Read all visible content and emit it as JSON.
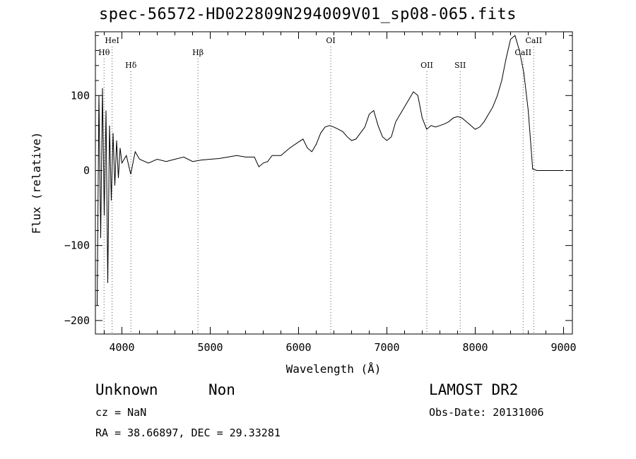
{
  "header": {
    "title": "spec-56572-HD022809N294009V01_sp08-065.fits"
  },
  "info": {
    "class": "Unknown",
    "subclass": "Non",
    "survey": "LAMOST DR2",
    "cz": "cz = NaN",
    "obs_date": "Obs-Date: 20131006",
    "radec": "RA =  38.66897, DEC =  29.33281"
  },
  "chart_data": {
    "type": "line",
    "title": "spec-56572-HD022809N294009V01_sp08-065.fits",
    "xlabel": "Wavelength (Å)",
    "ylabel": "Flux (relative)",
    "xlim": [
      3700,
      9100
    ],
    "ylim": [
      -218,
      185
    ],
    "xticks": [
      4000,
      5000,
      6000,
      7000,
      8000,
      9000
    ],
    "yticks": [
      -200,
      -100,
      0,
      100
    ],
    "grid": false,
    "line_color": "#000000",
    "marker_color": "#555555",
    "lines": [
      {
        "label": "Hθ",
        "wavelength": 3798,
        "row": 2
      },
      {
        "label": "HeI",
        "wavelength": 3889,
        "row": 1
      },
      {
        "label": "Hδ",
        "wavelength": 4102,
        "row": 3
      },
      {
        "label": "Hβ",
        "wavelength": 4861,
        "row": 2
      },
      {
        "label": "OI",
        "wavelength": 6364,
        "row": 1
      },
      {
        "label": "OII",
        "wavelength": 7452,
        "row": 3
      },
      {
        "label": "SII",
        "wavelength": 7830,
        "row": 3
      },
      {
        "label": "CaII",
        "wavelength": 8542,
        "row": 2
      },
      {
        "label": "CaII",
        "wavelength": 8662,
        "row": 1
      }
    ],
    "series": [
      {
        "x": [
          3720,
          3740,
          3760,
          3780,
          3800,
          3820,
          3840,
          3860,
          3880,
          3900,
          3920,
          3940,
          3960,
          3980,
          4000,
          4050,
          4100,
          4150,
          4200,
          4300,
          4400,
          4500,
          4600,
          4700,
          4800,
          4900,
          5000,
          5100,
          5200,
          5300,
          5400,
          5500,
          5550,
          5600,
          5650,
          5700,
          5800,
          5900,
          6000,
          6050,
          6100,
          6150,
          6200,
          6250,
          6300,
          6350,
          6400,
          6450,
          6500,
          6550,
          6600,
          6650,
          6700,
          6750,
          6800,
          6850,
          6900,
          6950,
          7000,
          7050,
          7100,
          7150,
          7200,
          7250,
          7300,
          7350,
          7400,
          7450,
          7500,
          7550,
          7600,
          7650,
          7700,
          7750,
          7800,
          7850,
          7900,
          7950,
          8000,
          8050,
          8100,
          8150,
          8200,
          8250,
          8300,
          8350,
          8400,
          8450,
          8500,
          8550,
          8600,
          8650,
          8700,
          8750,
          8800,
          8850,
          8900,
          8920,
          8940,
          8960,
          8980,
          9000
        ],
        "y": [
          -180,
          100,
          -90,
          110,
          -60,
          80,
          -150,
          60,
          -40,
          50,
          -20,
          40,
          -10,
          30,
          10,
          20,
          -5,
          25,
          15,
          10,
          15,
          12,
          15,
          18,
          12,
          14,
          15,
          16,
          18,
          20,
          18,
          18,
          5,
          10,
          12,
          20,
          20,
          30,
          38,
          42,
          30,
          25,
          35,
          50,
          58,
          60,
          58,
          55,
          52,
          45,
          40,
          42,
          50,
          58,
          75,
          80,
          60,
          45,
          40,
          45,
          65,
          75,
          85,
          95,
          105,
          100,
          70,
          55,
          60,
          58,
          60,
          62,
          65,
          70,
          72,
          70,
          65,
          60,
          55,
          58,
          65,
          75,
          85,
          100,
          120,
          150,
          175,
          180,
          160,
          130,
          80,
          2,
          0,
          0,
          0,
          0,
          0,
          0,
          0,
          0,
          0,
          0
        ]
      }
    ]
  }
}
